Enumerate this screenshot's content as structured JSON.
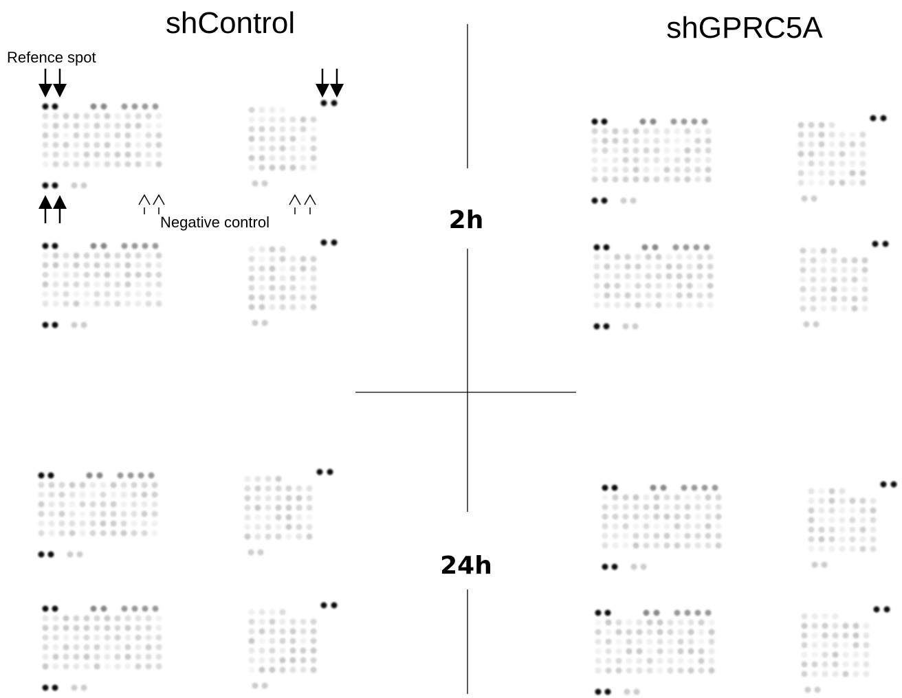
{
  "columns": [
    "shControl",
    "shGPRC5A"
  ],
  "rows": [
    "2h",
    "24h"
  ],
  "annotations": {
    "reference": "Refence spot",
    "negative": "Negative control"
  }
}
